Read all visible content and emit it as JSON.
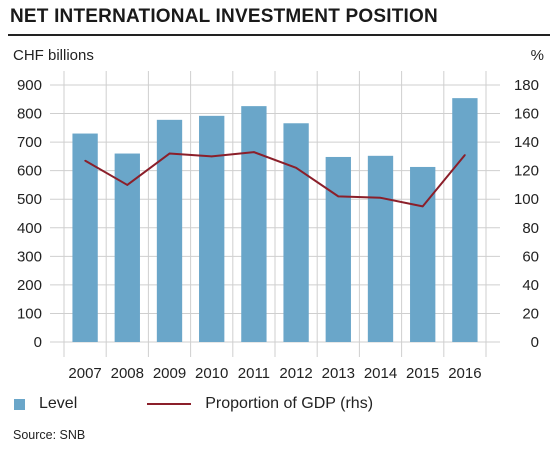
{
  "title": "NET INTERNATIONAL INVESTMENT POSITION",
  "source": "Source: SNB",
  "colors": {
    "bar": "#6aa6c9",
    "line": "#8b1f2a",
    "grid": "#cfcfcf"
  },
  "chart_data": {
    "type": "bar",
    "categories": [
      "2007",
      "2008",
      "2009",
      "2010",
      "2011",
      "2012",
      "2013",
      "2014",
      "2015",
      "2016"
    ],
    "series": [
      {
        "name": "Level",
        "type": "bar",
        "axis": "left",
        "values": [
          730,
          660,
          778,
          792,
          826,
          766,
          648,
          652,
          613,
          854
        ]
      },
      {
        "name": "Proportion of GDP (rhs)",
        "type": "line",
        "axis": "right",
        "values": [
          127,
          110,
          132,
          130,
          133,
          122,
          102,
          101,
          95,
          131
        ]
      }
    ],
    "ylabel_left": "CHF billions",
    "ylabel_right": "%",
    "ylim_left": [
      0,
      900
    ],
    "ylim_right": [
      0,
      180
    ],
    "yticks_left": [
      "0",
      "100",
      "200",
      "300",
      "400",
      "500",
      "600",
      "700",
      "800",
      "900"
    ],
    "yticks_right": [
      "0",
      "20",
      "40",
      "60",
      "80",
      "100",
      "120",
      "140",
      "160",
      "180"
    ],
    "grid": true,
    "legend_position": "bottom"
  }
}
